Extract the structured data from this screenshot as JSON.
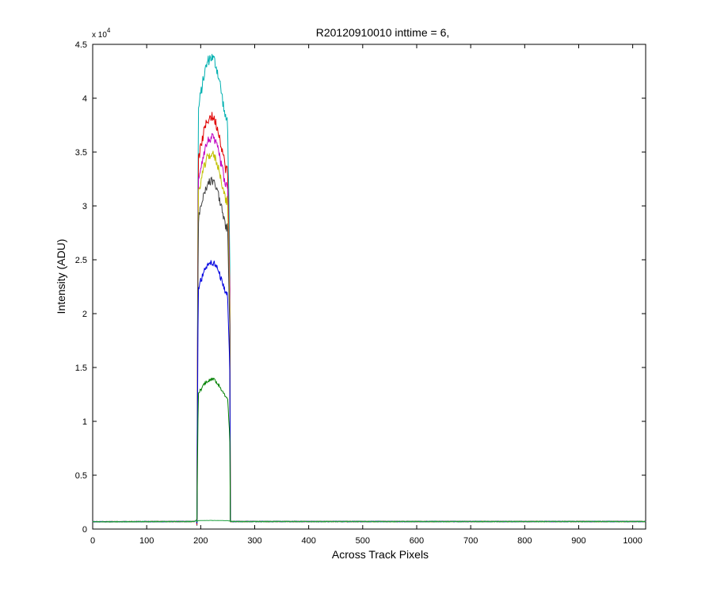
{
  "chart_data": {
    "type": "line",
    "title": "R20120910010 inttime = 6,",
    "xlabel": "Across Track Pixels",
    "ylabel": "Intensity (ADU)",
    "y_multiplier_label": "x 10",
    "y_multiplier_exponent": "4",
    "xlim": [
      0,
      1024
    ],
    "ylim": [
      0,
      45000
    ],
    "x_ticks": [
      0,
      100,
      200,
      300,
      400,
      500,
      600,
      700,
      800,
      900,
      1000
    ],
    "y_ticks": [
      0,
      0.5,
      1,
      1.5,
      2,
      2.5,
      3,
      3.5,
      4,
      4.5
    ],
    "y_tick_scale": 10000,
    "grid": false,
    "baseline": 700,
    "series": [
      {
        "color": "#00b0b0",
        "peak": 43800,
        "shoulder": 38000
      },
      {
        "color": "#e00000",
        "peak": 38300,
        "shoulder": 33500
      },
      {
        "color": "#c000c0",
        "peak": 36300,
        "shoulder": 31800
      },
      {
        "color": "#c0c000",
        "peak": 34800,
        "shoulder": 30500
      },
      {
        "color": "#404040",
        "peak": 32300,
        "shoulder": 28000
      },
      {
        "color": "#0000e0",
        "peak": 24800,
        "shoulder": 21800
      },
      {
        "color": "#008000",
        "peak": 13900,
        "shoulder": 12300
      },
      {
        "color": "#20a040",
        "peak": 800,
        "shoulder": 780
      }
    ],
    "signal_region": {
      "start": 193,
      "end": 254
    }
  }
}
